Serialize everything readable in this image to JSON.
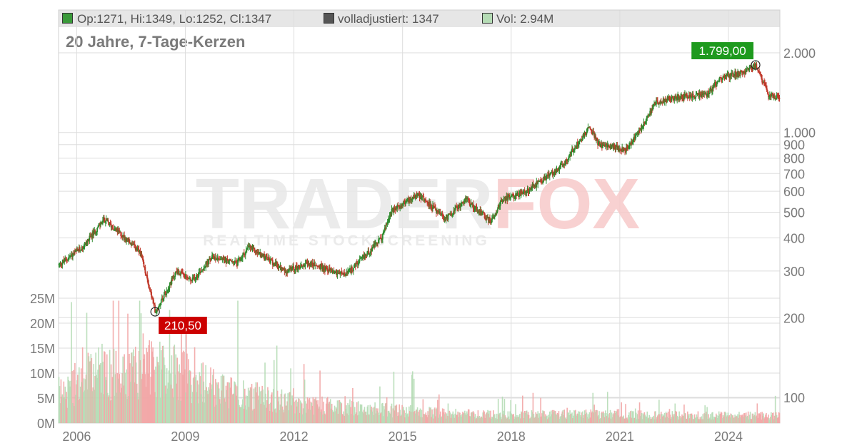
{
  "legend": {
    "ohlc": "Op:1271, Hi:1349, Lo:1252, Cl:1347",
    "adjusted": "volladjustiert: 1347",
    "volume": "Vol: 2.94M",
    "colors": {
      "ohlc": "#3a9a3a",
      "adjusted": "#555555",
      "volume": "#b5dcb5"
    }
  },
  "subtitle": "20 Jahre, 7-Tage-Kerzen",
  "watermark": {
    "main": "TRADERFOX",
    "sub": "REALTIME STOCKSCREENING"
  },
  "chart_data": {
    "type": "candlestick",
    "interval": "7-Tage-Kerzen",
    "period": "20 Jahre",
    "x_range": [
      "2005-06",
      "2025-06"
    ],
    "x_ticks": [
      "2006",
      "2009",
      "2012",
      "2015",
      "2018",
      "2021",
      "2024"
    ],
    "price_axis": {
      "scale": "log",
      "range": [
        80,
        2500
      ],
      "ticks": [
        "100",
        "200",
        "300",
        "400",
        "500",
        "600",
        "700",
        "800",
        "900",
        "1.000",
        "2.000"
      ],
      "tick_values": [
        100,
        200,
        300,
        400,
        500,
        600,
        700,
        800,
        900,
        1000,
        2000
      ],
      "position": "right"
    },
    "volume_axis": {
      "range": [
        0,
        25000000
      ],
      "ticks": [
        "0M",
        "5M",
        "10M",
        "15M",
        "20M",
        "25M"
      ],
      "tick_values": [
        0,
        5000000,
        10000000,
        15000000,
        20000000,
        25000000
      ],
      "position": "left"
    },
    "price_path": [
      [
        "2005-06",
        310
      ],
      [
        "2006-03",
        370
      ],
      [
        "2006-10",
        470
      ],
      [
        "2007-06",
        390
      ],
      [
        "2007-10",
        350
      ],
      [
        "2008-03",
        211
      ],
      [
        "2008-10",
        300
      ],
      [
        "2009-03",
        275
      ],
      [
        "2009-10",
        340
      ],
      [
        "2010-06",
        320
      ],
      [
        "2010-10",
        370
      ],
      [
        "2011-10",
        300
      ],
      [
        "2012-06",
        320
      ],
      [
        "2013-06",
        290
      ],
      [
        "2013-10",
        320
      ],
      [
        "2014-06",
        400
      ],
      [
        "2014-09",
        500
      ],
      [
        "2015-06",
        590
      ],
      [
        "2016-03",
        470
      ],
      [
        "2016-10",
        560
      ],
      [
        "2017-06",
        460
      ],
      [
        "2017-10",
        560
      ],
      [
        "2018-06",
        600
      ],
      [
        "2019-06",
        750
      ],
      [
        "2019-10",
        880
      ],
      [
        "2020-03",
        1050
      ],
      [
        "2020-06",
        900
      ],
      [
        "2021-03",
        860
      ],
      [
        "2021-06",
        960
      ],
      [
        "2022-01",
        1300
      ],
      [
        "2022-06",
        1350
      ],
      [
        "2023-06",
        1400
      ],
      [
        "2023-10",
        1600
      ],
      [
        "2024-06",
        1700
      ],
      [
        "2024-10",
        1799
      ],
      [
        "2025-02",
        1400
      ],
      [
        "2025-06",
        1347
      ]
    ],
    "volume_path": [
      [
        "2005-06",
        7000000
      ],
      [
        "2006-06",
        12000000
      ],
      [
        "2008-06",
        14000000
      ],
      [
        "2010-01",
        8000000
      ],
      [
        "2012-01",
        5000000
      ],
      [
        "2014-01",
        3500000
      ],
      [
        "2016-01",
        2500000
      ],
      [
        "2018-01",
        2000000
      ],
      [
        "2020-01",
        2200000
      ],
      [
        "2022-01",
        2000000
      ],
      [
        "2025-06",
        1800000
      ]
    ],
    "annotations": [
      {
        "label": "210,50",
        "type": "low",
        "date": "2008-03",
        "value": 210.5,
        "color": "#cc0000"
      },
      {
        "label": "1.799,00",
        "type": "high",
        "date": "2024-10",
        "value": 1799,
        "color": "#1e9a1e"
      }
    ],
    "colors": {
      "up": "#2e8b2e",
      "down": "#c0392b",
      "vol_up": "#b5dcb5",
      "vol_down": "#f2a5a5",
      "grid": "#dddddd"
    },
    "grid": true
  }
}
